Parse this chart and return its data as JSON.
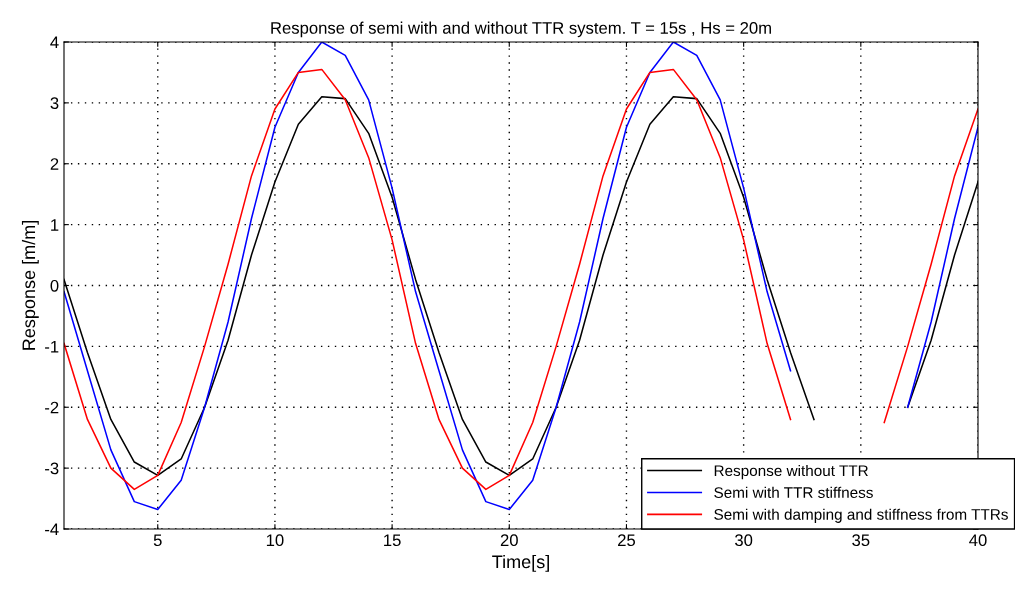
{
  "chart_data": {
    "type": "line",
    "title": "Response of semi with and without TTR system. T = 15s , Hs = 20m",
    "xlabel": "Time[s]",
    "ylabel": "Response [m/m]",
    "x": [
      1,
      2,
      3,
      4,
      5,
      6,
      7,
      8,
      9,
      10,
      11,
      12,
      13,
      14,
      15,
      16,
      17,
      18,
      19,
      20,
      21,
      22,
      23,
      24,
      25,
      26,
      27,
      28,
      29,
      30,
      31,
      32,
      33,
      34,
      35,
      36,
      37,
      38,
      39,
      40
    ],
    "series": [
      {
        "name": "Response without TTR",
        "color": "#000000",
        "values": [
          0.1,
          -1.1,
          -2.2,
          -2.9,
          -3.12,
          -2.85,
          -2.0,
          -0.9,
          0.5,
          1.7,
          2.65,
          3.1,
          3.07,
          2.5,
          1.45,
          0.1,
          -1.1,
          -2.2,
          -2.9,
          -3.12,
          -2.85,
          -2.0,
          -0.9,
          0.5,
          1.7,
          2.65,
          3.1,
          3.07,
          2.5,
          1.45,
          0.1,
          -1.1,
          -2.2,
          null,
          null,
          null,
          -2.0,
          -0.9,
          0.5,
          1.7
        ]
      },
      {
        "name": "Semi with TTR stiffness",
        "color": "#0000ff",
        "values": [
          -0.1,
          -1.4,
          -2.7,
          -3.55,
          -3.68,
          -3.2,
          -2.0,
          -0.6,
          1.1,
          2.6,
          3.5,
          4.0,
          3.78,
          3.05,
          1.6,
          -0.1,
          -1.4,
          -2.7,
          -3.55,
          -3.68,
          -3.2,
          -2.0,
          -0.6,
          1.1,
          2.6,
          3.5,
          4.0,
          3.78,
          3.05,
          1.6,
          -0.1,
          -1.4,
          null,
          null,
          null,
          null,
          -2.0,
          -0.6,
          1.1,
          2.6
        ]
      },
      {
        "name": "Semi with damping and stiffness from TTRs",
        "color": "#ff0000",
        "values": [
          -0.95,
          -2.2,
          -3.0,
          -3.35,
          -3.12,
          -2.25,
          -1.0,
          0.35,
          1.8,
          2.9,
          3.5,
          3.55,
          3.05,
          2.1,
          0.75,
          -0.95,
          -2.2,
          -3.0,
          -3.35,
          -3.12,
          -2.25,
          -1.0,
          0.35,
          1.8,
          2.9,
          3.5,
          3.55,
          3.05,
          2.1,
          0.75,
          -0.95,
          -2.2,
          null,
          null,
          null,
          -2.25,
          -1.0,
          0.35,
          1.8,
          2.9
        ]
      }
    ],
    "xlim": [
      1,
      40
    ],
    "xticks": [
      5,
      10,
      15,
      20,
      25,
      30,
      35,
      40
    ],
    "ylim": [
      -4,
      4
    ],
    "yticks": [
      -4,
      -3,
      -2,
      -1,
      0,
      1,
      2,
      3,
      4
    ],
    "grid": true,
    "legend": "bottom right",
    "marker": "none",
    "line_style": "solid"
  }
}
